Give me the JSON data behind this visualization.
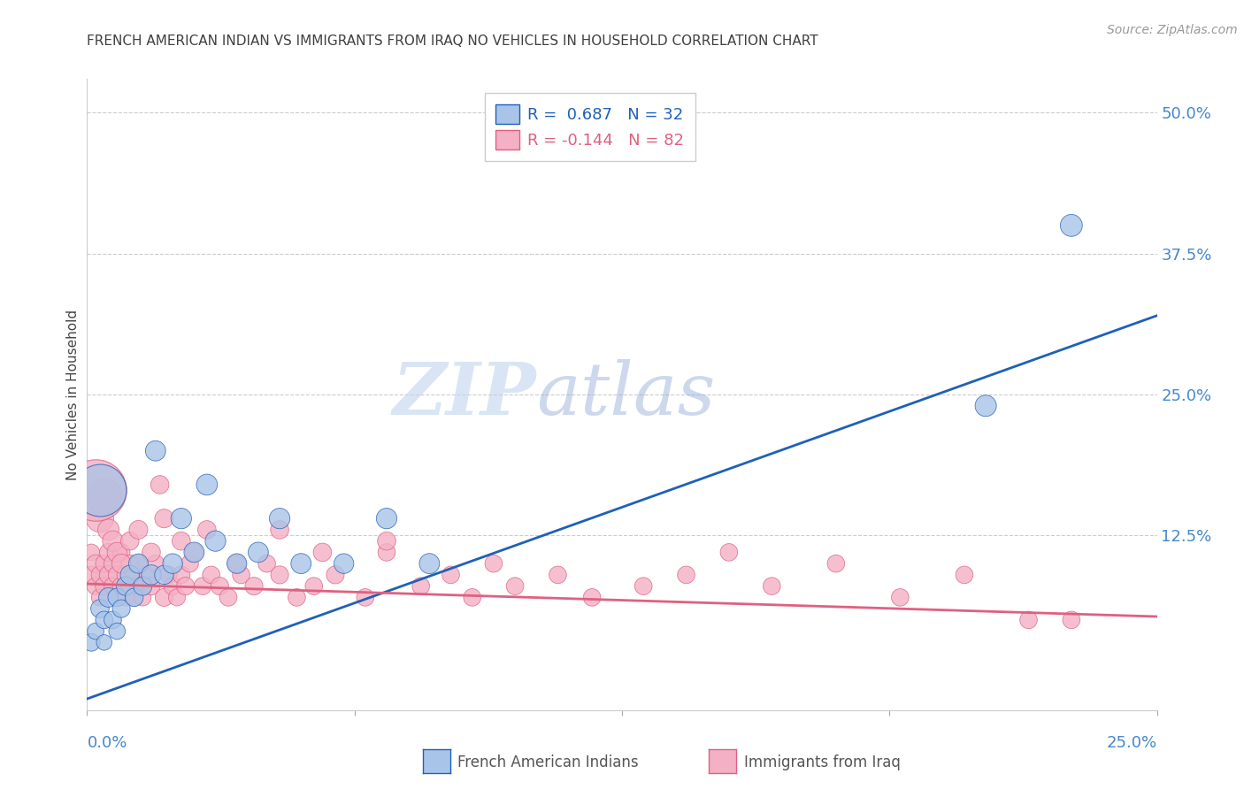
{
  "title": "FRENCH AMERICAN INDIAN VS IMMIGRANTS FROM IRAQ NO VEHICLES IN HOUSEHOLD CORRELATION CHART",
  "source": "Source: ZipAtlas.com",
  "ylabel": "No Vehicles in Household",
  "ytick_labels": [
    "12.5%",
    "25.0%",
    "37.5%",
    "50.0%"
  ],
  "ytick_values": [
    0.125,
    0.25,
    0.375,
    0.5
  ],
  "xlim": [
    0.0,
    0.25
  ],
  "ylim": [
    -0.03,
    0.53
  ],
  "R_blue": 0.687,
  "N_blue": 32,
  "R_pink": -0.144,
  "N_pink": 82,
  "legend_label_blue": "French American Indians",
  "legend_label_pink": "Immigrants from Iraq",
  "watermark_zip": "ZIP",
  "watermark_atlas": "atlas",
  "blue_line_x0": 0.0,
  "blue_line_y0": -0.02,
  "blue_line_x1": 0.25,
  "blue_line_y1": 0.32,
  "pink_line_x0": 0.0,
  "pink_line_y0": 0.082,
  "pink_line_x1": 0.25,
  "pink_line_y1": 0.053,
  "blue_color": "#a8c4e8",
  "pink_color": "#f4b0c4",
  "blue_line_color": "#2060b8",
  "pink_line_color": "#e06080",
  "grid_color": "#cccccc",
  "background_color": "#ffffff",
  "title_color": "#404040",
  "axis_label_color": "#4488cc",
  "source_color": "#999999",
  "blue_x": [
    0.001,
    0.002,
    0.003,
    0.004,
    0.004,
    0.005,
    0.006,
    0.007,
    0.007,
    0.008,
    0.009,
    0.01,
    0.011,
    0.012,
    0.013,
    0.015,
    0.016,
    0.018,
    0.02,
    0.022,
    0.025,
    0.028,
    0.03,
    0.035,
    0.04,
    0.045,
    0.05,
    0.06,
    0.07,
    0.08,
    0.21,
    0.23
  ],
  "blue_y": [
    0.03,
    0.04,
    0.06,
    0.03,
    0.05,
    0.07,
    0.05,
    0.04,
    0.07,
    0.06,
    0.08,
    0.09,
    0.07,
    0.1,
    0.08,
    0.09,
    0.2,
    0.09,
    0.1,
    0.14,
    0.11,
    0.17,
    0.12,
    0.1,
    0.11,
    0.14,
    0.1,
    0.1,
    0.14,
    0.1,
    0.24,
    0.4
  ],
  "blue_sizes": [
    200,
    180,
    220,
    160,
    200,
    250,
    200,
    180,
    220,
    210,
    230,
    240,
    220,
    250,
    230,
    260,
    270,
    240,
    260,
    280,
    270,
    290,
    280,
    260,
    270,
    280,
    270,
    260,
    280,
    270,
    300,
    320
  ],
  "pink_x": [
    0.001,
    0.001,
    0.002,
    0.002,
    0.003,
    0.003,
    0.004,
    0.004,
    0.005,
    0.005,
    0.006,
    0.006,
    0.007,
    0.007,
    0.008,
    0.008,
    0.009,
    0.009,
    0.01,
    0.01,
    0.011,
    0.011,
    0.012,
    0.012,
    0.013,
    0.014,
    0.015,
    0.016,
    0.017,
    0.018,
    0.019,
    0.02,
    0.021,
    0.022,
    0.023,
    0.024,
    0.025,
    0.027,
    0.029,
    0.031,
    0.033,
    0.036,
    0.039,
    0.042,
    0.045,
    0.049,
    0.053,
    0.058,
    0.065,
    0.07,
    0.078,
    0.085,
    0.09,
    0.095,
    0.1,
    0.11,
    0.118,
    0.13,
    0.14,
    0.15,
    0.16,
    0.175,
    0.19,
    0.205,
    0.22,
    0.003,
    0.004,
    0.005,
    0.006,
    0.007,
    0.008,
    0.01,
    0.012,
    0.015,
    0.018,
    0.022,
    0.028,
    0.035,
    0.045,
    0.055,
    0.07,
    0.23
  ],
  "pink_y": [
    0.09,
    0.11,
    0.08,
    0.1,
    0.07,
    0.09,
    0.08,
    0.1,
    0.09,
    0.11,
    0.08,
    0.1,
    0.07,
    0.09,
    0.08,
    0.11,
    0.07,
    0.09,
    0.08,
    0.1,
    0.07,
    0.09,
    0.08,
    0.1,
    0.07,
    0.09,
    0.08,
    0.1,
    0.17,
    0.07,
    0.09,
    0.08,
    0.07,
    0.09,
    0.08,
    0.1,
    0.11,
    0.08,
    0.09,
    0.08,
    0.07,
    0.09,
    0.08,
    0.1,
    0.09,
    0.07,
    0.08,
    0.09,
    0.07,
    0.11,
    0.08,
    0.09,
    0.07,
    0.1,
    0.08,
    0.09,
    0.07,
    0.08,
    0.09,
    0.11,
    0.08,
    0.1,
    0.07,
    0.09,
    0.05,
    0.14,
    0.16,
    0.13,
    0.12,
    0.11,
    0.1,
    0.12,
    0.13,
    0.11,
    0.14,
    0.12,
    0.13,
    0.1,
    0.13,
    0.11,
    0.12,
    0.05
  ],
  "pink_sizes": [
    200,
    180,
    200,
    210,
    190,
    200,
    210,
    200,
    220,
    210,
    200,
    210,
    190,
    200,
    210,
    200,
    190,
    200,
    210,
    200,
    190,
    200,
    210,
    200,
    190,
    200,
    210,
    200,
    220,
    210,
    200,
    210,
    190,
    200,
    210,
    200,
    210,
    200,
    200,
    210,
    200,
    200,
    210,
    200,
    210,
    200,
    200,
    210,
    200,
    200,
    200,
    200,
    200,
    200,
    200,
    200,
    200,
    200,
    200,
    200,
    200,
    200,
    200,
    200,
    200,
    500,
    800,
    300,
    280,
    260,
    240,
    220,
    230,
    220,
    230,
    220,
    220,
    220,
    220,
    220,
    220,
    200
  ]
}
